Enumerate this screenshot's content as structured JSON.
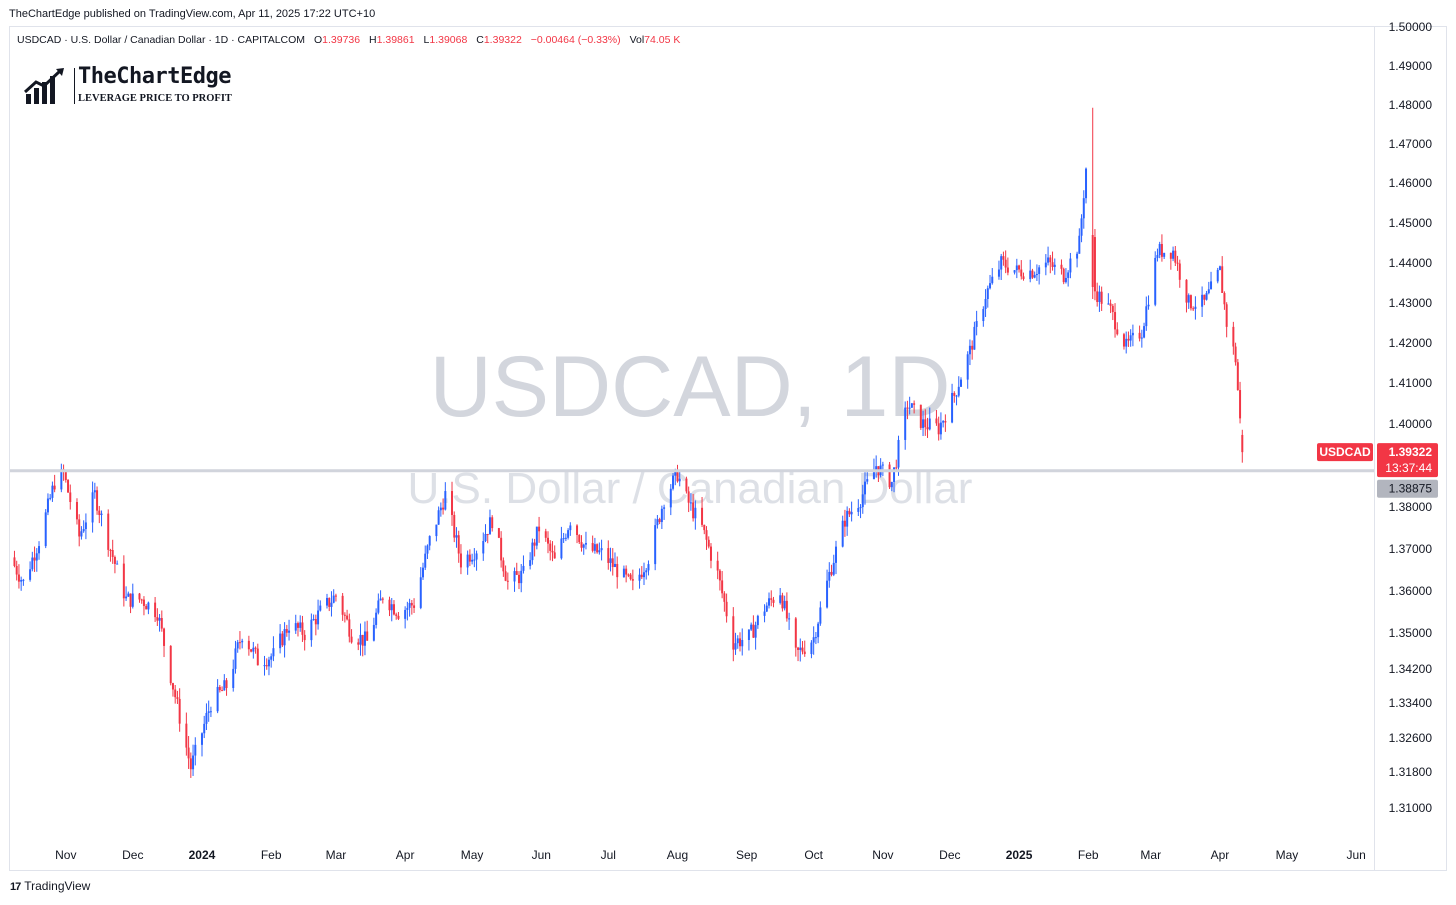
{
  "publisher_line": "TheChartEdge published on TradingView.com, Apr 11, 2025 17:22 UTC+10",
  "legend": {
    "symbol_text": "USDCAD · U.S. Dollar / Canadian Dollar · 1D · CAPITALCOM",
    "open_label": "O",
    "open": "1.39736",
    "high_label": "H",
    "high": "1.39861",
    "low_label": "L",
    "low": "1.39068",
    "close_label": "C",
    "close": "1.39322",
    "change": "−0.00464 (−0.33%)",
    "volume_label": "Vol",
    "volume": "74.05 K"
  },
  "logo": {
    "name": "TheChartEdge",
    "tagline": "LEVERAGE PRICE TO PROFIT"
  },
  "watermark": {
    "line1": "USDCAD, 1D",
    "line2": "U.S. Dollar / Canadian Dollar"
  },
  "footer": {
    "brand_mark": "17",
    "brand": "TradingView"
  },
  "colors": {
    "up": "#2962ff",
    "down": "#f23645",
    "level_line": "#d1d4dc",
    "price_tag_bg": "#f23645",
    "level_tag_bg": "#b2b5be",
    "axis_text": "#131722"
  },
  "chart_data": {
    "type": "candlestick",
    "symbol": "USDCAD",
    "interval": "1D",
    "exchange": "CAPITALCOM",
    "x_ticks": [
      {
        "label": "Nov",
        "date": "2023-11-01"
      },
      {
        "label": "Dec",
        "date": "2023-12-01"
      },
      {
        "label": "2024",
        "date": "2024-01-01",
        "bold": true
      },
      {
        "label": "Feb",
        "date": "2024-02-01"
      },
      {
        "label": "Mar",
        "date": "2024-03-01"
      },
      {
        "label": "Apr",
        "date": "2024-04-01"
      },
      {
        "label": "May",
        "date": "2024-05-01"
      },
      {
        "label": "Jun",
        "date": "2024-06-01"
      },
      {
        "label": "Jul",
        "date": "2024-07-01"
      },
      {
        "label": "Aug",
        "date": "2024-08-01"
      },
      {
        "label": "Sep",
        "date": "2024-09-01"
      },
      {
        "label": "Oct",
        "date": "2024-10-01"
      },
      {
        "label": "Nov",
        "date": "2024-11-01"
      },
      {
        "label": "Dec",
        "date": "2024-12-01"
      },
      {
        "label": "2025",
        "date": "2025-01-01",
        "bold": true
      },
      {
        "label": "Feb",
        "date": "2025-02-01"
      },
      {
        "label": "Mar",
        "date": "2025-03-01"
      },
      {
        "label": "Apr",
        "date": "2025-04-01"
      },
      {
        "label": "May",
        "date": "2025-05-01"
      },
      {
        "label": "Jun",
        "date": "2025-06-01"
      }
    ],
    "y_ticks": [
      "1.50000",
      "1.49000",
      "1.48000",
      "1.47000",
      "1.46000",
      "1.45000",
      "1.44000",
      "1.43000",
      "1.42000",
      "1.41000",
      "1.40000",
      "1.38000",
      "1.37000",
      "1.36000",
      "1.35000",
      "1.34200",
      "1.33400",
      "1.32600",
      "1.31800",
      "1.31000"
    ],
    "x_range": [
      "2023-10-07",
      "2025-06-09"
    ],
    "price_path": [
      [
        "2023-10-07",
        1.368
      ],
      [
        "2023-10-13",
        1.362
      ],
      [
        "2023-10-20",
        1.372
      ],
      [
        "2023-10-27",
        1.386
      ],
      [
        "2023-10-31",
        1.388
      ],
      [
        "2023-11-07",
        1.373
      ],
      [
        "2023-11-14",
        1.383
      ],
      [
        "2023-11-21",
        1.37
      ],
      [
        "2023-11-28",
        1.358
      ],
      [
        "2023-12-05",
        1.358
      ],
      [
        "2023-12-12",
        1.355
      ],
      [
        "2023-12-19",
        1.338
      ],
      [
        "2023-12-27",
        1.319
      ],
      [
        "2024-01-05",
        1.334
      ],
      [
        "2024-01-12",
        1.338
      ],
      [
        "2024-01-19",
        1.35
      ],
      [
        "2024-01-26",
        1.344
      ],
      [
        "2024-02-02",
        1.345
      ],
      [
        "2024-02-09",
        1.352
      ],
      [
        "2024-02-16",
        1.35
      ],
      [
        "2024-02-23",
        1.355
      ],
      [
        "2024-03-01",
        1.359
      ],
      [
        "2024-03-08",
        1.35
      ],
      [
        "2024-03-15",
        1.348
      ],
      [
        "2024-03-22",
        1.359
      ],
      [
        "2024-03-29",
        1.355
      ],
      [
        "2024-04-05",
        1.357
      ],
      [
        "2024-04-12",
        1.372
      ],
      [
        "2024-04-19",
        1.383
      ],
      [
        "2024-04-26",
        1.367
      ],
      [
        "2024-05-03",
        1.37
      ],
      [
        "2024-05-10",
        1.377
      ],
      [
        "2024-05-17",
        1.362
      ],
      [
        "2024-05-24",
        1.364
      ],
      [
        "2024-05-31",
        1.375
      ],
      [
        "2024-06-07",
        1.367
      ],
      [
        "2024-06-14",
        1.377
      ],
      [
        "2024-06-21",
        1.37
      ],
      [
        "2024-06-28",
        1.369
      ],
      [
        "2024-07-05",
        1.365
      ],
      [
        "2024-07-12",
        1.361
      ],
      [
        "2024-07-19",
        1.368
      ],
      [
        "2024-07-26",
        1.382
      ],
      [
        "2024-08-01",
        1.388
      ],
      [
        "2024-08-05",
        1.382
      ],
      [
        "2024-08-12",
        1.375
      ],
      [
        "2024-08-19",
        1.364
      ],
      [
        "2024-08-26",
        1.348
      ],
      [
        "2024-09-02",
        1.349
      ],
      [
        "2024-09-09",
        1.356
      ],
      [
        "2024-09-16",
        1.36
      ],
      [
        "2024-09-23",
        1.345
      ],
      [
        "2024-10-01",
        1.349
      ],
      [
        "2024-10-08",
        1.364
      ],
      [
        "2024-10-15",
        1.377
      ],
      [
        "2024-10-22",
        1.382
      ],
      [
        "2024-10-29",
        1.39
      ],
      [
        "2024-11-05",
        1.386
      ],
      [
        "2024-11-12",
        1.405
      ],
      [
        "2024-11-19",
        1.4
      ],
      [
        "2024-11-26",
        1.399
      ],
      [
        "2024-12-03",
        1.407
      ],
      [
        "2024-12-10",
        1.418
      ],
      [
        "2024-12-17",
        1.432
      ],
      [
        "2024-12-24",
        1.44
      ],
      [
        "2024-12-31",
        1.438
      ],
      [
        "2025-01-07",
        1.438
      ],
      [
        "2025-01-14",
        1.44
      ],
      [
        "2025-01-21",
        1.437
      ],
      [
        "2025-01-28",
        1.445
      ],
      [
        "2025-02-01",
        1.47
      ],
      [
        "2025-02-04",
        1.433
      ],
      [
        "2025-02-11",
        1.428
      ],
      [
        "2025-02-18",
        1.419
      ],
      [
        "2025-02-25",
        1.423
      ],
      [
        "2025-03-04",
        1.443
      ],
      [
        "2025-03-11",
        1.443
      ],
      [
        "2025-03-18",
        1.43
      ],
      [
        "2025-03-25",
        1.43
      ],
      [
        "2025-04-01",
        1.438
      ],
      [
        "2025-04-04",
        1.425
      ],
      [
        "2025-04-08",
        1.416
      ],
      [
        "2025-04-11",
        1.393
      ]
    ],
    "last_price": "1.39322",
    "last_price_label": "USDCAD",
    "bar_countdown": "13:37:44",
    "horizontal_level": "1.38875"
  }
}
